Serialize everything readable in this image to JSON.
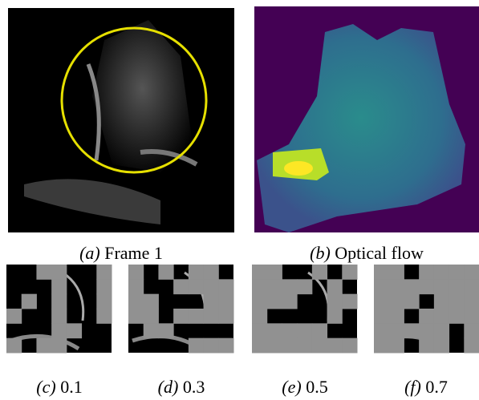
{
  "panels": [
    {
      "tag": "(a)",
      "text": "Frame 1"
    },
    {
      "tag": "(b)",
      "text": "Optical flow"
    },
    {
      "tag": "(c)",
      "text": "0.1"
    },
    {
      "tag": "(d)",
      "text": "0.3"
    },
    {
      "tag": "(e)",
      "text": "0.5"
    },
    {
      "tag": "(f)",
      "text": "0.7"
    }
  ]
}
